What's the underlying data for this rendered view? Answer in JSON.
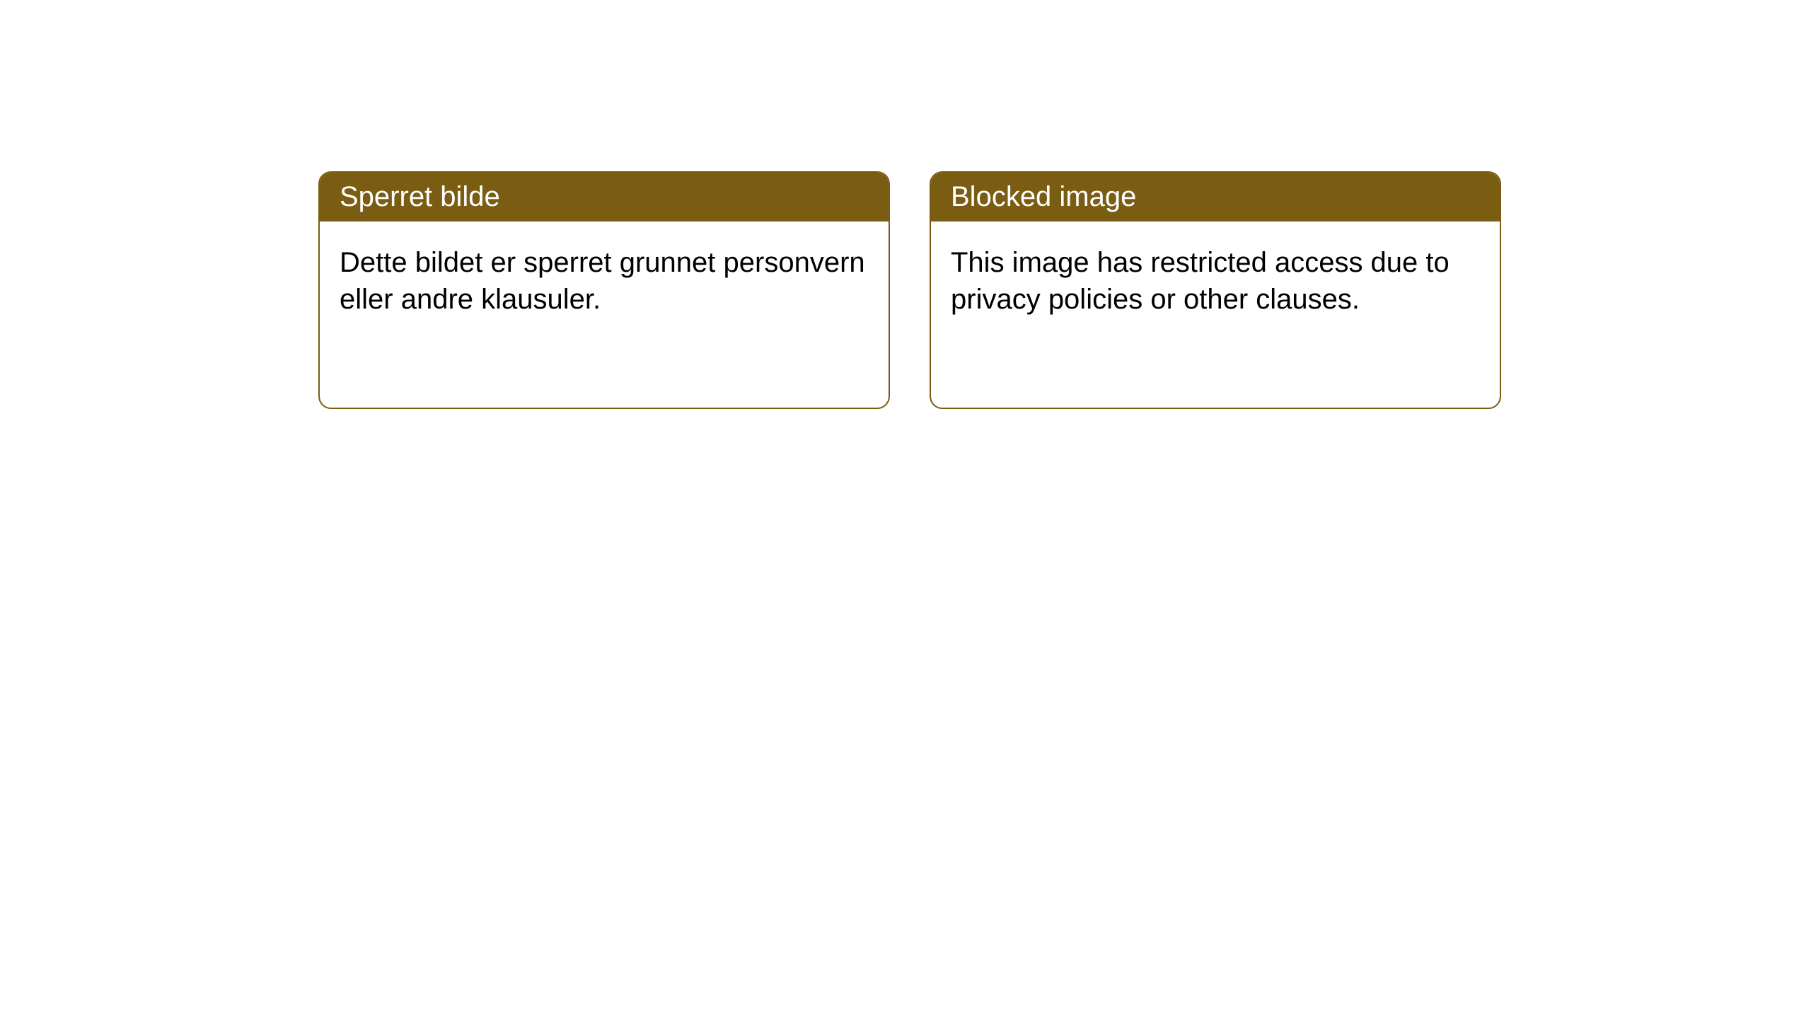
{
  "notices": [
    {
      "title": "Sperret bilde",
      "body": "Dette bildet er sperret grunnet personvern eller andre klausuler."
    },
    {
      "title": "Blocked image",
      "body": "This image has restricted access due to privacy policies or other clauses."
    }
  ],
  "styles": {
    "card_border_color": "#7a5d13",
    "header_bg_color": "#7a5d13",
    "header_text_color": "#ffffff",
    "body_text_color": "#000000",
    "background_color": "#ffffff",
    "border_radius": 18,
    "title_fontsize": 40,
    "body_fontsize": 40
  }
}
